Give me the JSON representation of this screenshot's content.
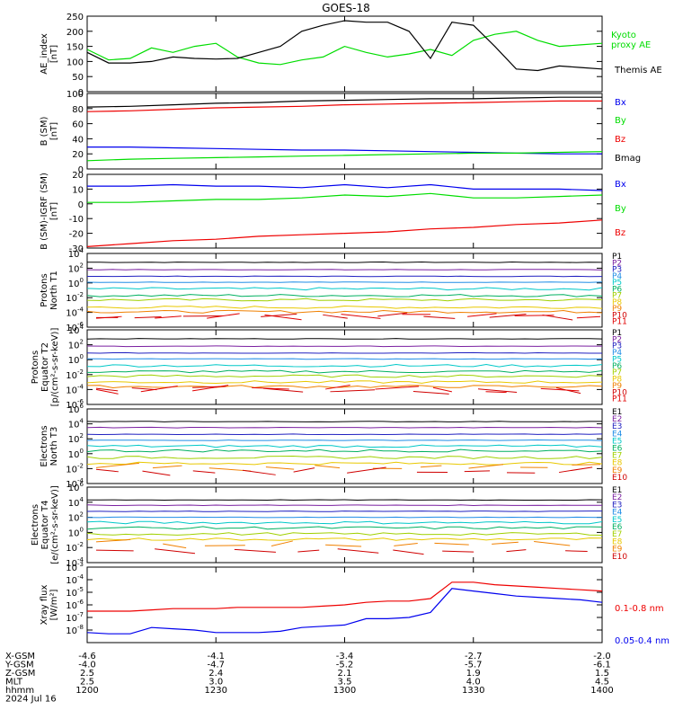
{
  "title": "GOES-18",
  "x_ticks": [
    "1200",
    "1230",
    "1300",
    "1330",
    "1400"
  ],
  "footer": {
    "rows": [
      {
        "label": "X-GSM",
        "values": [
          "-4.6",
          "-4.1",
          "-3.4",
          "-2.7",
          "-2.0"
        ]
      },
      {
        "label": "Y-GSM",
        "values": [
          "-4.0",
          "-4.7",
          "-5.2",
          "-5.7",
          "-6.1"
        ]
      },
      {
        "label": "Z-GSM",
        "values": [
          "2.5",
          "2.4",
          "2.1",
          "1.9",
          "1.5"
        ]
      },
      {
        "label": "MLT",
        "values": [
          "2.5",
          "3.0",
          "3.5",
          "4.0",
          "4.5"
        ]
      },
      {
        "label": "hhmm",
        "values": [
          "1200",
          "1230",
          "1300",
          "1330",
          "1400"
        ]
      }
    ],
    "date": "2024 Jul 16"
  },
  "colors": {
    "black": "#000000",
    "green": "#00dd00",
    "blue": "#0000ee",
    "red": "#ee0000",
    "p1": "#000000",
    "p2": "#7a1fa0",
    "p3": "#2020c0",
    "p4": "#1e8ce6",
    "p5": "#00c8c8",
    "p6": "#00b060",
    "p7": "#a0d000",
    "p8": "#e8c800",
    "p9": "#f08000",
    "p10": "#d00000",
    "p11": "#e00000"
  },
  "chart_data": [
    {
      "type": "line",
      "ylabel": "AE_index [nT]",
      "ylim": [
        0,
        250
      ],
      "ticks": [
        "0",
        "50",
        "100",
        "150",
        "200",
        "250"
      ],
      "x": [
        1200,
        1205,
        1210,
        1215,
        1220,
        1225,
        1230,
        1235,
        1240,
        1245,
        1250,
        1255,
        1300,
        1305,
        1310,
        1315,
        1320,
        1325,
        1330,
        1335,
        1340,
        1345,
        1350,
        1355,
        1400
      ],
      "series": [
        {
          "name": "Kyoto proxy AE",
          "color": "green",
          "values": [
            140,
            105,
            110,
            145,
            130,
            150,
            160,
            115,
            95,
            90,
            105,
            115,
            150,
            130,
            115,
            125,
            140,
            120,
            170,
            190,
            200,
            170,
            150,
            155,
            160
          ]
        },
        {
          "name": "Themis AE",
          "color": "black",
          "values": [
            130,
            95,
            95,
            100,
            115,
            110,
            108,
            110,
            130,
            150,
            200,
            220,
            235,
            230,
            230,
            200,
            110,
            230,
            220,
            150,
            75,
            70,
            85,
            80,
            75
          ]
        }
      ],
      "legend": [
        {
          "text": "Kyoto",
          "color": "green"
        },
        {
          "text": "proxy AE",
          "color": "green"
        },
        {
          "text": "Themis AE",
          "color": "black"
        }
      ]
    },
    {
      "type": "line",
      "ylabel": "B (SM) [nT]",
      "ylim": [
        0,
        100
      ],
      "ticks": [
        "0",
        "20",
        "40",
        "60",
        "80",
        "100"
      ],
      "x": [
        1200,
        1210,
        1220,
        1230,
        1240,
        1250,
        1300,
        1310,
        1320,
        1330,
        1340,
        1350,
        1400
      ],
      "series": [
        {
          "name": "Bx",
          "color": "blue",
          "values": [
            29,
            29,
            28,
            27,
            26,
            25,
            25,
            24,
            23,
            22,
            21,
            20,
            20
          ]
        },
        {
          "name": "By",
          "color": "green",
          "values": [
            11,
            13,
            14,
            15,
            16,
            17,
            18,
            19,
            20,
            21,
            21,
            22,
            23
          ]
        },
        {
          "name": "Bz",
          "color": "red",
          "values": [
            76,
            77,
            79,
            81,
            82,
            83,
            85,
            86,
            87,
            88,
            89,
            90,
            90
          ]
        },
        {
          "name": "Bmag",
          "color": "black",
          "values": [
            82,
            83,
            85,
            87,
            88,
            90,
            91,
            92,
            93,
            93,
            94,
            95,
            95
          ]
        }
      ],
      "legend": [
        {
          "text": "Bx",
          "color": "blue"
        },
        {
          "text": "By",
          "color": "green"
        },
        {
          "text": "Bz",
          "color": "red"
        },
        {
          "text": "Bmag",
          "color": "black"
        }
      ]
    },
    {
      "type": "line",
      "ylabel": "B (SM)-IGRF (SM) [nT]",
      "ylim": [
        -30,
        20
      ],
      "ticks": [
        "-30",
        "-20",
        "-10",
        "0",
        "10",
        "20"
      ],
      "x": [
        1200,
        1210,
        1220,
        1230,
        1240,
        1250,
        1300,
        1310,
        1320,
        1330,
        1340,
        1350,
        1400
      ],
      "series": [
        {
          "name": "Bx",
          "color": "blue",
          "values": [
            12,
            12,
            13,
            12,
            12,
            11,
            13,
            11,
            13,
            10,
            10,
            10,
            9
          ]
        },
        {
          "name": "By",
          "color": "green",
          "values": [
            1,
            1,
            2,
            3,
            3,
            4,
            6,
            5,
            7,
            4,
            4,
            5,
            6
          ]
        },
        {
          "name": "Bz",
          "color": "red",
          "values": [
            -29,
            -27,
            -25,
            -24,
            -22,
            -21,
            -20,
            -19,
            -17,
            -16,
            -14,
            -13,
            -11
          ]
        }
      ],
      "legend": [
        {
          "text": "Bx",
          "color": "blue"
        },
        {
          "text": "By",
          "color": "green"
        },
        {
          "text": "Bz",
          "color": "red"
        }
      ]
    },
    {
      "type": "line",
      "ylabel": "Protons North T1",
      "log": true,
      "ylim_exp": [
        -6,
        4
      ],
      "tick_exp": [
        -6,
        -4,
        -2,
        0,
        2,
        4
      ],
      "series_exp": [
        2.8,
        1.8,
        0.9,
        0.1,
        -0.8,
        -1.7,
        -2.3,
        -3.3,
        -3.9,
        -4.5,
        -4.5
      ],
      "legend": [
        "P1",
        "P2",
        "P3",
        "P4",
        "P5",
        "P6",
        "P7",
        "P8",
        "P9",
        "P10",
        "P11"
      ]
    },
    {
      "type": "line",
      "ylabel": "Protons Equator T2",
      "ylabel2": "[p/(cm²-s-sr-keV)]",
      "log": true,
      "ylim_exp": [
        -6,
        4
      ],
      "tick_exp": [
        -6,
        -4,
        -2,
        0,
        2,
        4
      ],
      "series_exp": [
        2.8,
        1.8,
        0.9,
        0.1,
        -0.8,
        -1.6,
        -2.2,
        -3.0,
        -3.6,
        -4.0,
        -4.0
      ],
      "legend": [
        "P1",
        "P2",
        "P3",
        "P4",
        "P5",
        "P6",
        "P7",
        "P8",
        "P9",
        "P10",
        "P11"
      ]
    },
    {
      "type": "line",
      "ylabel": "Electrons North T3",
      "log": true,
      "ylim_exp": [
        -4,
        6
      ],
      "tick_exp": [
        -4,
        -2,
        0,
        2,
        4,
        6
      ],
      "series_exp": [
        4.3,
        3.5,
        2.6,
        1.8,
        1.0,
        0.4,
        -0.5,
        -1.3,
        -1.8,
        -2.4
      ],
      "legend": [
        "E1",
        "E2",
        "E3",
        "E4",
        "E5",
        "E6",
        "E7",
        "E8",
        "E9",
        "E10"
      ]
    },
    {
      "type": "line",
      "ylabel": "Electrons Equator T4",
      "ylabel2": "[e/(cm²-s-sr-keV)]",
      "log": true,
      "ylim_exp": [
        -4,
        6
      ],
      "tick_exp": [
        -4,
        -2,
        0,
        2,
        4,
        6
      ],
      "series_exp": [
        4.3,
        3.6,
        2.8,
        2.0,
        1.3,
        0.6,
        -0.2,
        -0.9,
        -1.5,
        -2.3
      ],
      "legend": [
        "E1",
        "E2",
        "E3",
        "E4",
        "E5",
        "E6",
        "E7",
        "E8",
        "E9",
        "E10"
      ]
    },
    {
      "type": "line",
      "ylabel": "Xray flux [W/m²]",
      "log": true,
      "ylim_exp": [
        -9,
        -3
      ],
      "tick_exp": [
        -8,
        -7,
        -6,
        -5,
        -4,
        -3
      ],
      "x": [
        1200,
        1205,
        1210,
        1215,
        1220,
        1225,
        1230,
        1235,
        1240,
        1245,
        1250,
        1255,
        1300,
        1305,
        1310,
        1315,
        1320,
        1325,
        1330,
        1335,
        1340,
        1345,
        1350,
        1355,
        1400
      ],
      "series": [
        {
          "name": "0.1-0.8 nm",
          "color": "red",
          "values": [
            -6.5,
            -6.5,
            -6.5,
            -6.4,
            -6.3,
            -6.3,
            -6.3,
            -6.2,
            -6.2,
            -6.2,
            -6.2,
            -6.1,
            -6.0,
            -5.8,
            -5.7,
            -5.7,
            -5.5,
            -4.2,
            -4.2,
            -4.4,
            -4.5,
            -4.6,
            -4.7,
            -4.8,
            -4.9
          ]
        },
        {
          "name": "0.05-0.4 nm",
          "color": "blue",
          "values": [
            -8.2,
            -8.3,
            -8.3,
            -7.8,
            -7.9,
            -8.0,
            -8.2,
            -8.2,
            -8.2,
            -8.1,
            -7.8,
            -7.7,
            -7.6,
            -7.1,
            -7.1,
            -7.0,
            -6.6,
            -4.7,
            -4.9,
            -5.1,
            -5.3,
            -5.4,
            -5.5,
            -5.6,
            -5.8
          ]
        }
      ],
      "legend": [
        {
          "text": "0.1-0.8 nm",
          "color": "red"
        },
        {
          "text": "0.05-0.4 nm",
          "color": "blue"
        }
      ]
    }
  ]
}
